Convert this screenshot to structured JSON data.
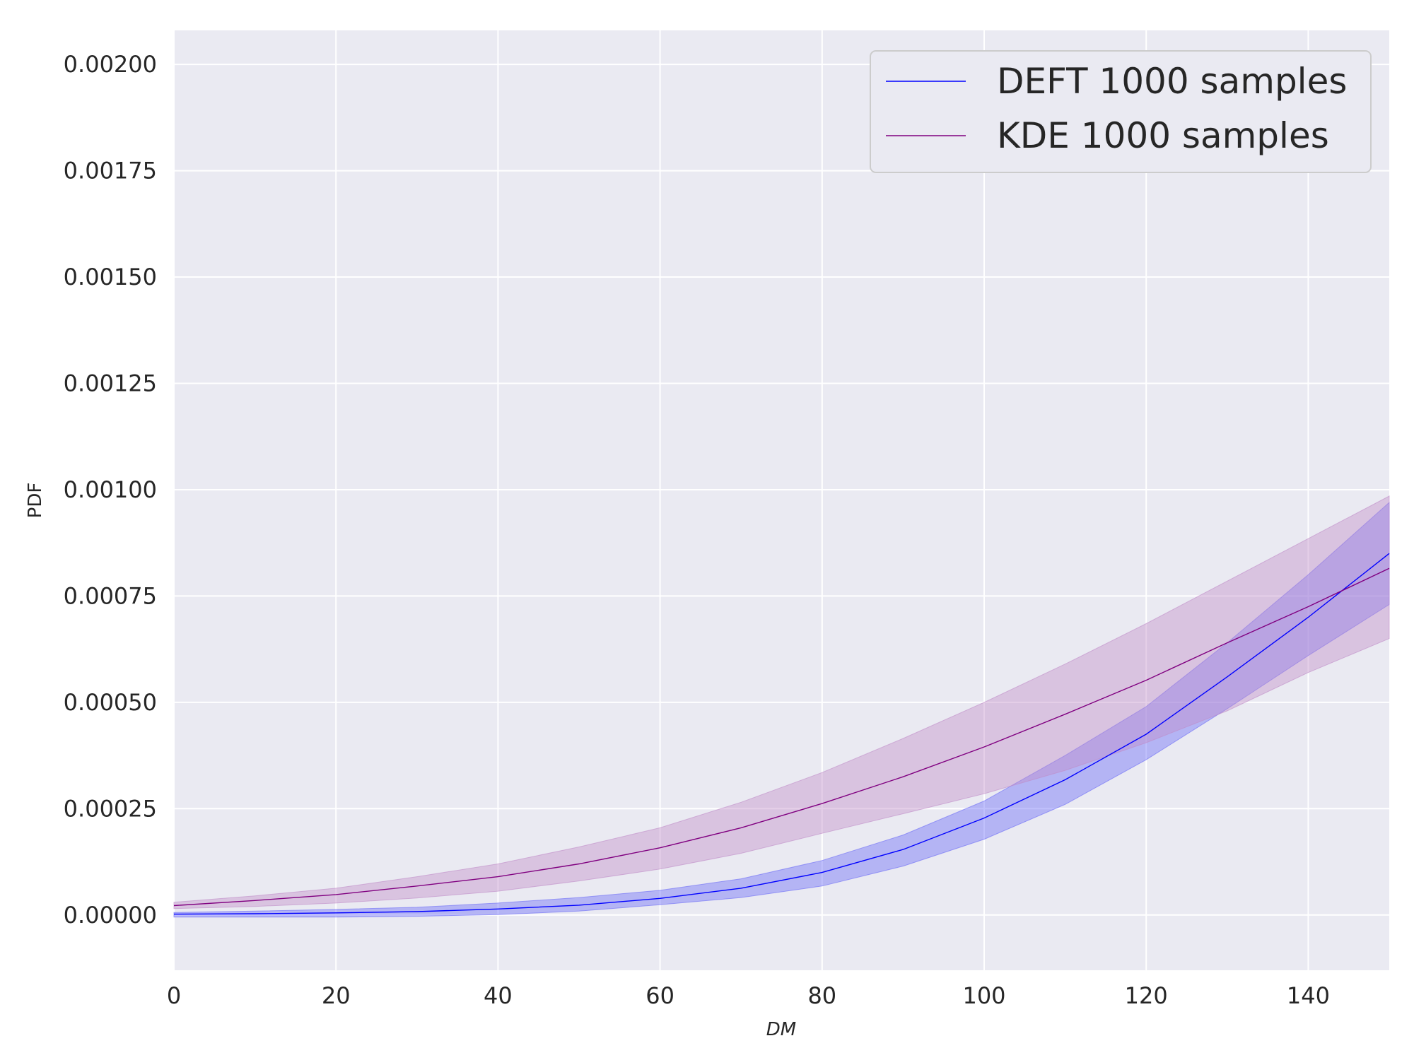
{
  "chart_data": {
    "type": "line",
    "title": "",
    "xlabel": "DM",
    "ylabel": "PDF",
    "xlim": [
      0,
      150
    ],
    "ylim": [
      -0.00013,
      0.00208
    ],
    "xticks": [
      0,
      20,
      40,
      60,
      80,
      100,
      120,
      140
    ],
    "xtick_labels": [
      "0",
      "20",
      "40",
      "60",
      "80",
      "100",
      "120",
      "140"
    ],
    "yticks": [
      0,
      0.00025,
      0.0005,
      0.00075,
      0.001,
      0.00125,
      0.0015,
      0.00175,
      0.002
    ],
    "ytick_labels": [
      "0.00000",
      "0.00025",
      "0.00050",
      "0.00075",
      "0.00100",
      "0.00125",
      "0.00150",
      "0.00175",
      "0.00200"
    ],
    "grid": true,
    "legend_position": "top-right",
    "x": [
      0,
      10,
      20,
      30,
      40,
      50,
      60,
      70,
      80,
      90,
      100,
      110,
      120,
      130,
      140,
      150
    ],
    "series": [
      {
        "name": "DEFT 1000 samples",
        "color": "#0000ff",
        "band_color": "#6a6af7",
        "values": [
          2e-06,
          3e-06,
          5e-06,
          8e-06,
          1.4e-05,
          2.3e-05,
          3.9e-05,
          6.3e-05,
          0.0001,
          0.000154,
          0.000228,
          0.000318,
          0.000425,
          0.00056,
          0.0007,
          0.00085
        ],
        "lower": [
          -5e-06,
          -5e-06,
          -5e-06,
          -3e-06,
          1e-06,
          9e-06,
          2.4e-05,
          4.1e-05,
          6.8e-05,
          0.000115,
          0.000178,
          0.00026,
          0.000365,
          0.000485,
          0.00061,
          0.00073
        ],
        "upper": [
          6e-06,
          9e-06,
          1.3e-05,
          1.8e-05,
          2.8e-05,
          4.1e-05,
          5.8e-05,
          8.5e-05,
          0.000128,
          0.000188,
          0.000268,
          0.000375,
          0.00049,
          0.00064,
          0.0008,
          0.00097
        ]
      },
      {
        "name": "KDE 1000 samples",
        "color": "#800080",
        "band_color": "#c08cc8",
        "values": [
          2.2e-05,
          3.4e-05,
          4.8e-05,
          6.8e-05,
          9e-05,
          0.00012,
          0.000158,
          0.000205,
          0.000262,
          0.000325,
          0.000395,
          0.000472,
          0.000552,
          0.00064,
          0.000725,
          0.000815
        ],
        "lower": [
          1.5e-05,
          2e-05,
          2.8e-05,
          4e-05,
          5.6e-05,
          8e-05,
          0.000108,
          0.000145,
          0.000192,
          0.000238,
          0.000285,
          0.00034,
          0.000405,
          0.00048,
          0.00057,
          0.00065
        ],
        "upper": [
          3e-05,
          4.5e-05,
          6.3e-05,
          9e-05,
          0.00012,
          0.00016,
          0.000205,
          0.000265,
          0.000335,
          0.000415,
          0.0005,
          0.00059,
          0.000685,
          0.000785,
          0.000885,
          0.000985
        ]
      }
    ]
  }
}
